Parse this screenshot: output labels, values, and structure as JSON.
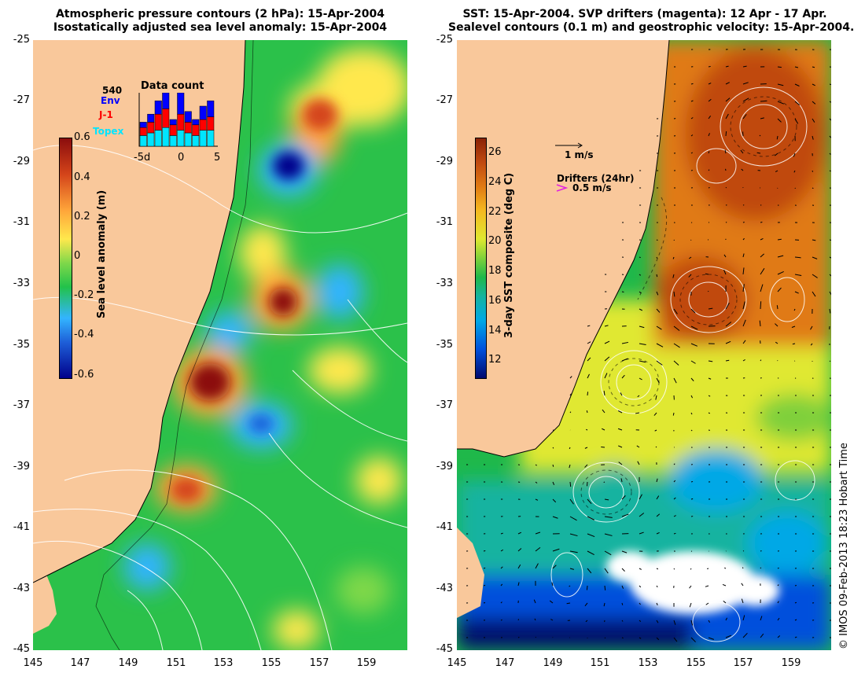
{
  "left_panel": {
    "title_line1": "Atmospheric pressure contours (2 hPa): 15-Apr-2004",
    "title_line2": "Isostatically adjusted sea level anomaly: 15-Apr-2004",
    "colorbar_label": "Sea level anomaly (m)",
    "colorbar_ticks": [
      "0.6",
      "0.4",
      "0.2",
      "0",
      "-0.2",
      "-0.4",
      "-0.6"
    ],
    "inset": {
      "title": "Data count",
      "max_label": "540",
      "legend": [
        {
          "label": "Env",
          "color": "#0000ff"
        },
        {
          "label": "J-1",
          "color": "#ff0000"
        },
        {
          "label": "Topex",
          "color": "#00e5ff"
        }
      ],
      "xticks": [
        "-5d",
        "0",
        "5"
      ],
      "bars": [
        {
          "topex": 0.2,
          "j1": 0.15,
          "env": 0.1
        },
        {
          "topex": 0.25,
          "j1": 0.2,
          "env": 0.15
        },
        {
          "topex": 0.3,
          "j1": 0.3,
          "env": 0.25
        },
        {
          "topex": 0.35,
          "j1": 0.35,
          "env": 0.3
        },
        {
          "topex": 0.2,
          "j1": 0.2,
          "env": 0.1
        },
        {
          "topex": 0.3,
          "j1": 0.3,
          "env": 0.4
        },
        {
          "topex": 0.25,
          "j1": 0.2,
          "env": 0.2
        },
        {
          "topex": 0.2,
          "j1": 0.2,
          "env": 0.1
        },
        {
          "topex": 0.3,
          "j1": 0.2,
          "env": 0.25
        },
        {
          "topex": 0.3,
          "j1": 0.25,
          "env": 0.3
        }
      ]
    }
  },
  "right_panel": {
    "title_line1": "SST: 15-Apr-2004. SVP drifters (magenta): 12 Apr - 17 Apr.",
    "title_line2": "Sealevel contours (0.1 m) and geostrophic velocity: 15-Apr-2004.",
    "colorbar_label": "3-day SST composite (deg C)",
    "colorbar_ticks": [
      "26",
      "24",
      "22",
      "20",
      "18",
      "16",
      "14",
      "12"
    ],
    "velocity_scale_label": "1 m/s",
    "drifters_label": "Drifters (24hr)",
    "drifters_scale_label": "0.5 m/s"
  },
  "yticks": [
    "-25",
    "-27",
    "-29",
    "-31",
    "-33",
    "-35",
    "-37",
    "-39",
    "-41",
    "-43",
    "-45"
  ],
  "xticks": [
    "145",
    "147",
    "149",
    "151",
    "153",
    "155",
    "157",
    "159"
  ],
  "credit": "© IMOS 09-Feb-2013 18:23 Hobart Time",
  "colors": {
    "land": "#f9c89b",
    "ssa_scale": [
      "#00008b",
      "#1e5fd8",
      "#33b4ff",
      "#22c24a",
      "#7fd84a",
      "#ffe84d",
      "#ffa53a",
      "#d4441a",
      "#8b0d0d"
    ],
    "sst_scale": [
      "#000a6e",
      "#0050dc",
      "#00a8e6",
      "#15b3a0",
      "#1fb84a",
      "#7fd03a",
      "#e0e830",
      "#f5b820",
      "#e07a14",
      "#c04a10",
      "#8a2206"
    ]
  }
}
